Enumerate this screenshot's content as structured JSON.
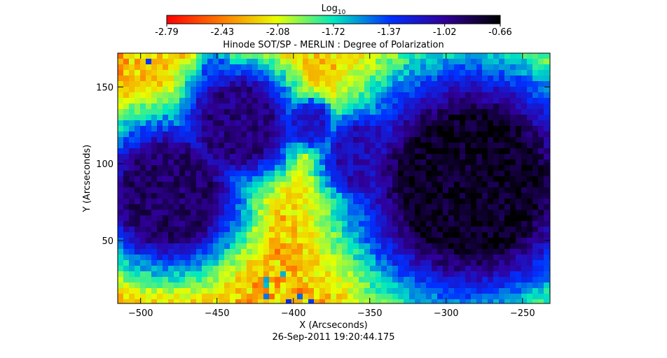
{
  "chart_data": {
    "type": "heatmap",
    "title": "Hinode SOT/SP - MERLIN : Degree of Polarization",
    "xlabel": "X (Arcseconds)",
    "ylabel": "Y (Arcseconds)",
    "timestamp": "26-Sep-2011  19:20:44.175",
    "xlim": [
      -515,
      -232
    ],
    "ylim": [
      9,
      172
    ],
    "x_ticks": [
      -500,
      -450,
      -400,
      -350,
      -300,
      -250
    ],
    "y_ticks": [
      50,
      100,
      150
    ],
    "colorbar": {
      "label_base": "Log",
      "label_sub": "10",
      "range": [
        -2.79,
        -0.66
      ],
      "ticks": [
        "-2.79",
        "-2.43",
        "-2.08",
        "-1.72",
        "-1.37",
        "-1.02",
        "-0.66"
      ],
      "colormap": "rainbow"
    },
    "features": [
      {
        "x": -482,
        "y": 80,
        "value": -0.9,
        "r": 24
      },
      {
        "x": -436,
        "y": 126,
        "value": -0.95,
        "r": 19
      },
      {
        "x": -284,
        "y": 87,
        "value": -0.75,
        "r": 37
      },
      {
        "x": -352,
        "y": 104,
        "value": -1.1,
        "r": 16
      },
      {
        "x": -389,
        "y": 126,
        "value": -1.2,
        "r": 9
      },
      {
        "x": -450,
        "y": 158,
        "value": -1.4,
        "r": 8
      }
    ]
  }
}
